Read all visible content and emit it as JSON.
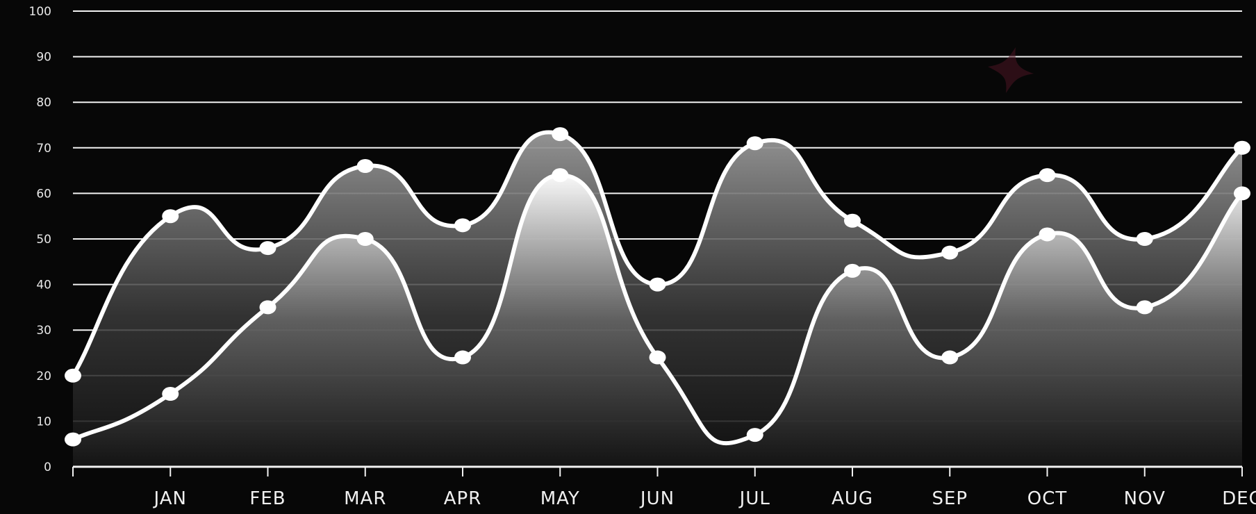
{
  "chart_data": {
    "type": "area",
    "x": [
      "",
      "JAN",
      "FEB",
      "MAR",
      "APR",
      "MAY",
      "JUN",
      "JUL",
      "AUG",
      "SEP",
      "OCT",
      "NOV",
      "DEC"
    ],
    "yticks": [
      0,
      10,
      20,
      30,
      40,
      50,
      60,
      70,
      80,
      90,
      100
    ],
    "ylim": [
      0,
      100
    ],
    "grid": true,
    "series": [
      {
        "values": [
          20,
          55,
          48,
          66,
          53,
          73,
          40,
          71,
          54,
          47,
          64,
          50,
          70
        ]
      },
      {
        "values": [
          6,
          16,
          35,
          50,
          24,
          64,
          24,
          7,
          43,
          24,
          51,
          35,
          60
        ]
      }
    ],
    "colors": {
      "background": "#070707",
      "line": "#ffffff",
      "grid": "#f2f2f2",
      "star": "#4a1422"
    },
    "decoration_icon": "four-point-star-icon"
  }
}
